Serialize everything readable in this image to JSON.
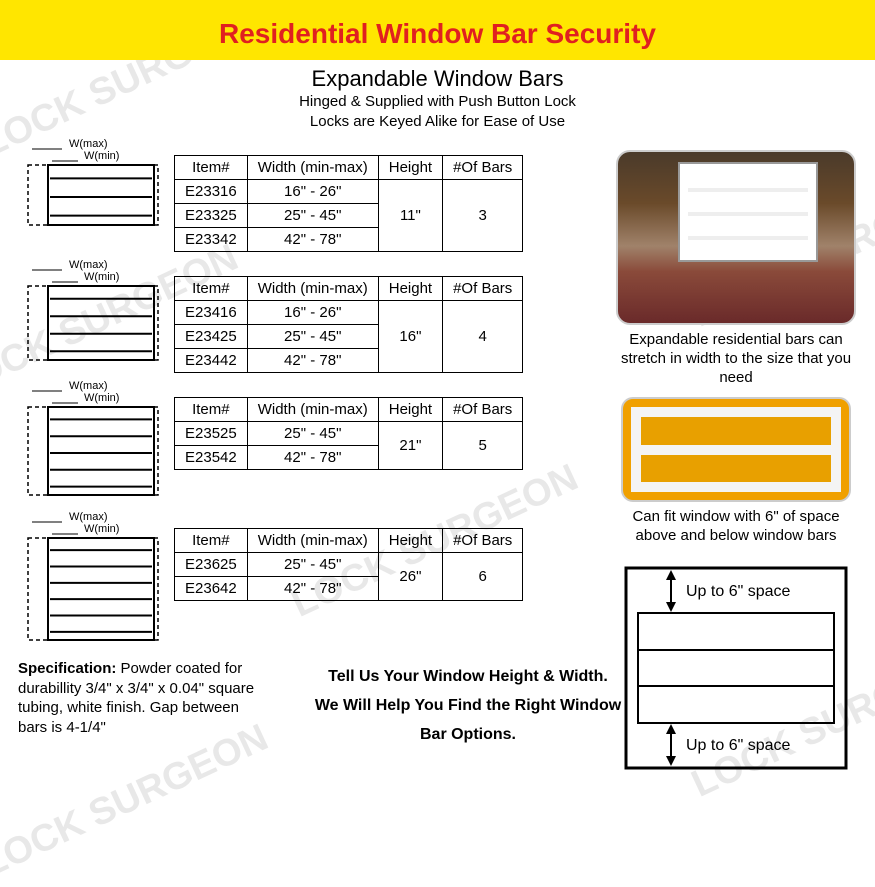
{
  "banner": {
    "title": "Residential Window Bar Security"
  },
  "subheader": {
    "title": "Expandable Window Bars",
    "line1": "Hinged & Supplied with Push Button Lock",
    "line2": "Locks are Keyed Alike for Ease of Use"
  },
  "table_headers": {
    "c1": "Item#",
    "c2": "Width (min-max)",
    "c3": "Height",
    "c4": "#Of Bars"
  },
  "tables": [
    {
      "height": "11\"",
      "bars": "3",
      "rows": [
        {
          "item": "E23316",
          "width": "16\" - 26\""
        },
        {
          "item": "E23325",
          "width": "25\" - 45\""
        },
        {
          "item": "E23342",
          "width": "42\" - 78\""
        }
      ],
      "diag_bars": 3
    },
    {
      "height": "16\"",
      "bars": "4",
      "rows": [
        {
          "item": "E23416",
          "width": "16\" - 26\""
        },
        {
          "item": "E23425",
          "width": "25\" - 45\""
        },
        {
          "item": "E23442",
          "width": "42\" - 78\""
        }
      ],
      "diag_bars": 4
    },
    {
      "height": "21\"",
      "bars": "5",
      "rows": [
        {
          "item": "E23525",
          "width": "25\" - 45\""
        },
        {
          "item": "E23542",
          "width": "42\" - 78\""
        }
      ],
      "diag_bars": 5
    },
    {
      "height": "26\"",
      "bars": "6",
      "rows": [
        {
          "item": "E23625",
          "width": "25\" - 45\""
        },
        {
          "item": "E23642",
          "width": "42\" - 78\""
        }
      ],
      "diag_bars": 6
    }
  ],
  "diag_labels": {
    "wmax": "W(max)",
    "wmin": "W(min)"
  },
  "side": {
    "caption1": "Expandable residential bars can stretch in width to the size that you need",
    "caption2": "Can fit window with 6\" of space above and below window bars",
    "space_label": "Up to 6\" space"
  },
  "spec": {
    "label": "Specification:",
    "text": " Powder coated for durabillity 3/4\" x 3/4\" x 0.04\" square tubing, white finish. Gap between bars is 4-1/4\""
  },
  "help": {
    "line1": "Tell Us Your Window Height & Width.",
    "line2": "We Will Help You Find the Right Window Bar Options."
  },
  "watermark_text": "LOCK SURGEON",
  "colors": {
    "banner_bg": "#ffe600",
    "title_color": "#e02020",
    "border_color": "#000000",
    "watermark_color": "#e8e8e8"
  }
}
